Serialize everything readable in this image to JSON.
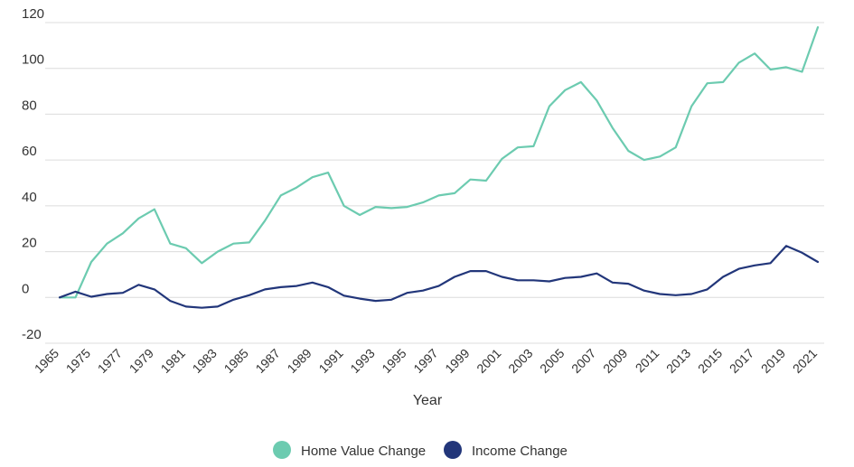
{
  "chart_data": {
    "type": "line",
    "xlabel": "Year",
    "ylabel": "",
    "title": "",
    "ylim": [
      -20,
      120
    ],
    "yticks": [
      -20,
      0,
      20,
      40,
      60,
      80,
      100,
      120
    ],
    "x": [
      "1965",
      "1974",
      "1975",
      "1976",
      "1977",
      "1978",
      "1979",
      "1980",
      "1981",
      "1982",
      "1983",
      "1984",
      "1985",
      "1986",
      "1987",
      "1988",
      "1989",
      "1990",
      "1991",
      "1992",
      "1993",
      "1994",
      "1995",
      "1996",
      "1997",
      "1998",
      "1999",
      "2000",
      "2001",
      "2002",
      "2003",
      "2004",
      "2005",
      "2006",
      "2007",
      "2008",
      "2009",
      "2010",
      "2011",
      "2012",
      "2013",
      "2014",
      "2015",
      "2016",
      "2017",
      "2018",
      "2019",
      "2020",
      "2021"
    ],
    "xtick_labels": [
      "1965",
      "1975",
      "1977",
      "1979",
      "1981",
      "1983",
      "1985",
      "1987",
      "1989",
      "1991",
      "1993",
      "1995",
      "1997",
      "1999",
      "2001",
      "2003",
      "2005",
      "2007",
      "2009",
      "2011",
      "2013",
      "2015",
      "2017",
      "2019",
      "2021"
    ],
    "grid": true,
    "legend_position": "bottom",
    "series": [
      {
        "name": "Home Value Change",
        "color": "#6ccbb0",
        "values": [
          0,
          0,
          15.5,
          23.5,
          28,
          34.5,
          38.5,
          23.5,
          21.5,
          15,
          20,
          23.5,
          24,
          33.5,
          44.5,
          48,
          52.5,
          54.5,
          40,
          36,
          39.5,
          39,
          39.5,
          41.5,
          44.5,
          45.5,
          51.5,
          51,
          60.5,
          65.5,
          66,
          83.5,
          90.5,
          94,
          86,
          74,
          64,
          60,
          61.5,
          65.5,
          83.5,
          93.5,
          94,
          102.5,
          106.5,
          99.5,
          100.5,
          98.5,
          118
        ]
      },
      {
        "name": "Income Change",
        "color": "#22367a",
        "values": [
          0,
          2.5,
          0.3,
          1.5,
          2,
          5.5,
          3.5,
          -1.5,
          -4,
          -4.5,
          -4,
          -1,
          1,
          3.5,
          4.5,
          5,
          6.5,
          4.5,
          0.8,
          -0.5,
          -1.5,
          -1,
          2,
          3,
          5,
          9,
          11.5,
          11.5,
          9,
          7.5,
          7.5,
          7,
          8.5,
          9,
          10.5,
          6.5,
          6,
          3,
          1.5,
          1,
          1.5,
          3.5,
          9,
          12.5,
          14,
          15,
          22.5,
          19.5,
          15.5
        ]
      }
    ]
  }
}
